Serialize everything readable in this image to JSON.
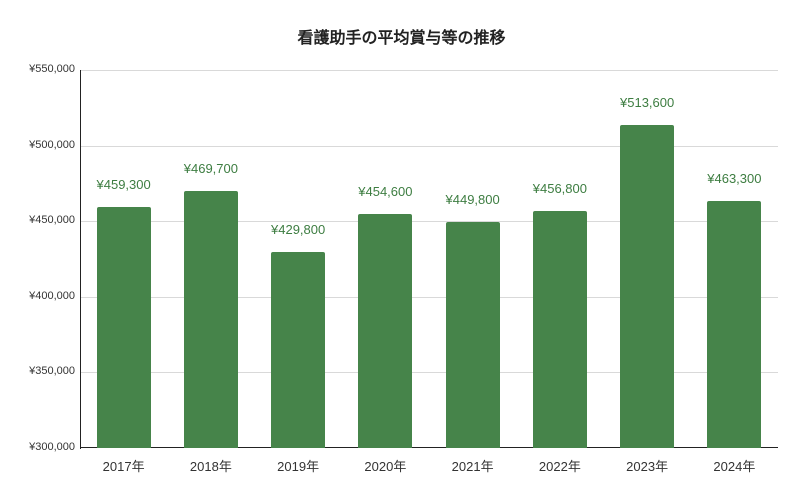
{
  "title": "看護助手の平均賞与等の推移",
  "chart_data": {
    "type": "bar",
    "title": "看護助手の平均賞与等の推移",
    "xlabel": "",
    "ylabel": "",
    "categories": [
      "2017年",
      "2018年",
      "2019年",
      "2020年",
      "2021年",
      "2022年",
      "2023年",
      "2024年"
    ],
    "values": [
      459300,
      469700,
      429800,
      454600,
      449800,
      456800,
      513600,
      463300
    ],
    "value_labels": [
      "¥459,300",
      "¥469,700",
      "¥429,800",
      "¥454,600",
      "¥449,800",
      "¥456,800",
      "¥513,600",
      "¥463,300"
    ],
    "ylim": [
      300000,
      550000
    ],
    "yticks": [
      300000,
      350000,
      400000,
      450000,
      500000,
      550000
    ],
    "ytick_labels": [
      "¥300,000",
      "¥350,000",
      "¥400,000",
      "¥450,000",
      "¥500,000",
      "¥550,000"
    ],
    "grid": true,
    "legend": "none",
    "bar_color": "#46844a",
    "label_color": "#3d7d41"
  }
}
